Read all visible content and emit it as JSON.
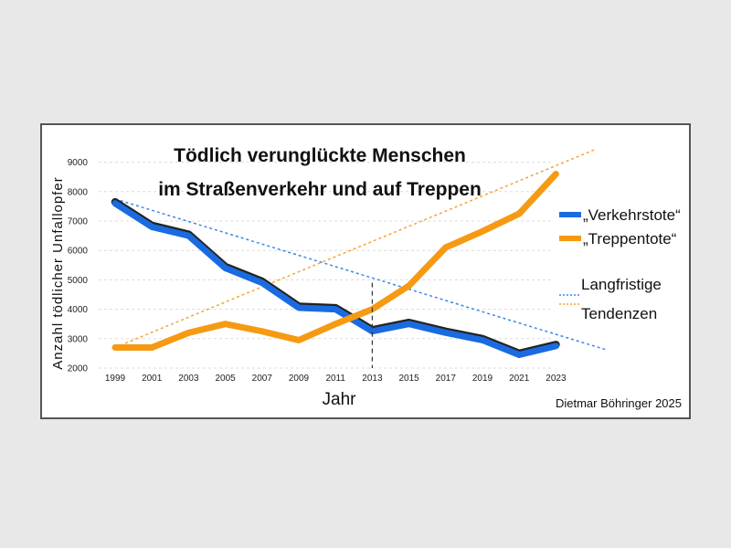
{
  "chart_data": {
    "type": "line",
    "title_line1": "Tödlich verunglückte Menschen",
    "title_line2": "im Straßenverkehr und auf Treppen",
    "xlabel": "Jahr",
    "ylabel": "Anzahl tödlicher Unfallopfer",
    "credit": "Dietmar Böhringer 2025",
    "x": [
      1999,
      2001,
      2003,
      2005,
      2007,
      2009,
      2011,
      2013,
      2015,
      2017,
      2019,
      2021,
      2023
    ],
    "y_ticks": [
      2000,
      3000,
      4000,
      5000,
      6000,
      7000,
      8000,
      9000
    ],
    "ylim": [
      2000,
      9000
    ],
    "xlim": [
      1999,
      2026
    ],
    "marker_year": 2013,
    "series": [
      {
        "name": "„Verkehrstote“",
        "color": "#1a6be0",
        "values": [
          7600,
          6800,
          6500,
          5400,
          4900,
          4050,
          4000,
          3250,
          3500,
          3200,
          2950,
          2450,
          2750
        ]
      },
      {
        "name": "„Treppentote“",
        "color": "#f59a12",
        "values": [
          2700,
          2700,
          3200,
          3500,
          3250,
          2950,
          3500,
          4000,
          4800,
          6100,
          6650,
          7250,
          8600
        ]
      }
    ],
    "trend_legend": [
      "Langfristige",
      "Tendenzen"
    ],
    "trends": [
      {
        "series": "„Verkehrstote“",
        "color": "#3a86e8",
        "from": [
          1999,
          7750
        ],
        "to": [
          2025.7,
          2630
        ]
      },
      {
        "series": "„Treppentote“",
        "color": "#f2a43a",
        "from": [
          1999,
          2700
        ],
        "to": [
          2025.2,
          9450
        ]
      }
    ]
  }
}
